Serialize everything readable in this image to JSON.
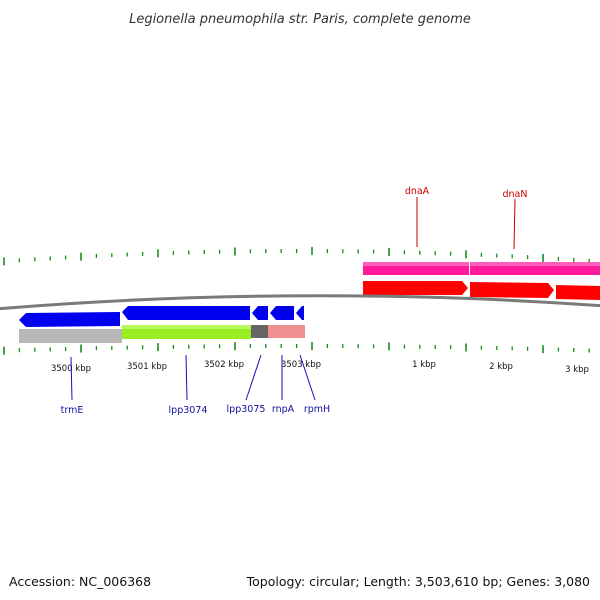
{
  "title": "Legionella pneumophila str. Paris, complete genome",
  "footer": {
    "accession": "Accession: NC_006368",
    "summary": "Topology: circular; Length: 3,503,610 bp; Genes: 3,080"
  },
  "axis": {
    "tick_labels": [
      "3500 kbp",
      "3501 kbp",
      "3502 kbp",
      "3503 kbp",
      "1 kbp",
      "2 kbp",
      "3 kbp"
    ]
  },
  "genes": {
    "dnaA": "dnaA",
    "dnaN": "dnaN",
    "trmE": "trmE",
    "lpp3074": "lpp3074",
    "lpp3075": "lpp3075",
    "rnpA": "rnpA",
    "rpmH": "rpmH"
  },
  "colors": {
    "backbone": "#888888",
    "forward_cds": "#ff0000",
    "forward_gene": "#ff1493",
    "reverse_cds": "#0000ee",
    "gene_grey": "#b4b4b4",
    "gene_green": "#99ee22",
    "gene_darkgrey": "#666666",
    "gene_pink": "#ee9999",
    "tick": "#1a8a1a",
    "label_red": "#cc0000",
    "label_blue": "#1010a0"
  }
}
